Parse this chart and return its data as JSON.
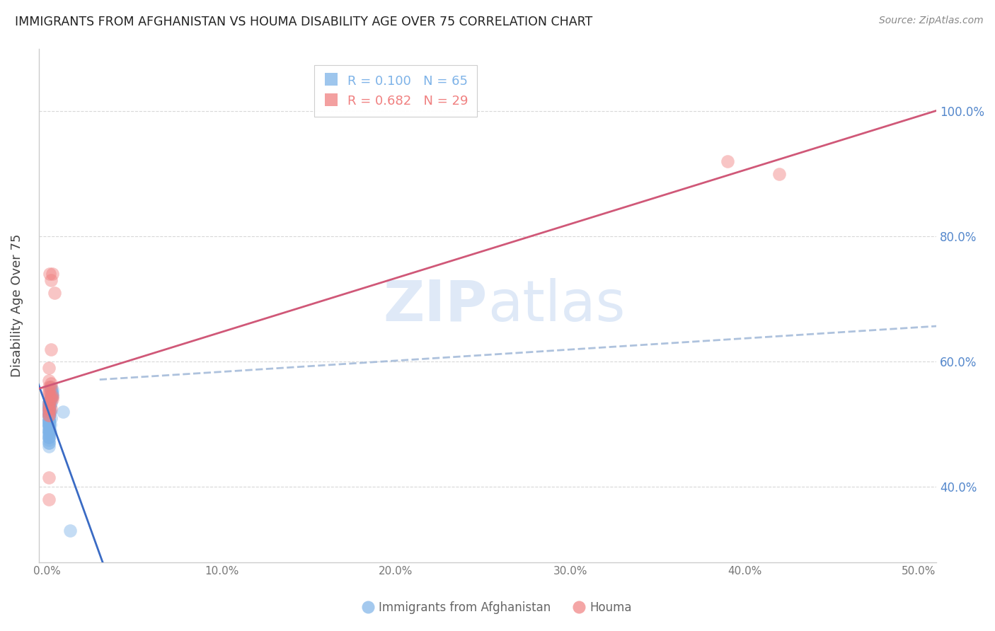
{
  "title": "IMMIGRANTS FROM AFGHANISTAN VS HOUMA DISABILITY AGE OVER 75 CORRELATION CHART",
  "source": "Source: ZipAtlas.com",
  "ylabel": "Disability Age Over 75",
  "afghanistan_color": "#7eb3e8",
  "houma_color": "#f08080",
  "regression_afghanistan_color": "#3a6bc4",
  "regression_houma_color": "#d05878",
  "dashed_line_color": "#a0b8d8",
  "background_color": "#ffffff",
  "grid_color": "#d8d8d8",
  "right_tick_color": "#5588cc",
  "scatter_size": 180,
  "scatter_alpha": 0.45,
  "afghanistan_x": [
    0.1,
    0.2,
    0.15,
    0.3,
    0.2,
    0.12,
    0.15,
    0.1,
    0.22,
    0.1,
    0.1,
    0.15,
    0.2,
    0.1,
    0.1,
    0.28,
    0.2,
    0.25,
    0.1,
    0.1,
    0.1,
    0.2,
    0.1,
    0.1,
    0.1,
    0.1,
    0.1,
    0.1,
    0.1,
    0.1,
    0.1,
    0.15,
    0.15,
    0.1,
    0.1,
    0.1,
    0.1,
    0.1,
    0.2,
    0.1,
    0.1,
    0.1,
    0.3,
    0.1,
    0.1,
    0.1,
    0.1,
    0.1,
    0.1,
    0.1,
    0.15,
    0.1,
    0.1,
    0.1,
    0.15,
    0.1,
    0.1,
    0.1,
    0.1,
    0.1,
    0.1,
    0.1,
    0.1,
    0.9,
    1.3
  ],
  "afghanistan_y": [
    0.535,
    0.545,
    0.54,
    0.555,
    0.54,
    0.53,
    0.56,
    0.535,
    0.555,
    0.53,
    0.528,
    0.53,
    0.545,
    0.535,
    0.53,
    0.55,
    0.555,
    0.55,
    0.53,
    0.528,
    0.525,
    0.535,
    0.528,
    0.525,
    0.52,
    0.525,
    0.52,
    0.518,
    0.518,
    0.515,
    0.515,
    0.52,
    0.52,
    0.515,
    0.515,
    0.51,
    0.51,
    0.505,
    0.51,
    0.505,
    0.505,
    0.5,
    0.545,
    0.5,
    0.505,
    0.5,
    0.5,
    0.495,
    0.495,
    0.49,
    0.5,
    0.49,
    0.49,
    0.485,
    0.49,
    0.485,
    0.48,
    0.48,
    0.475,
    0.47,
    0.48,
    0.47,
    0.465,
    0.52,
    0.33
  ],
  "houma_x": [
    0.2,
    0.3,
    0.12,
    0.4,
    0.2,
    0.1,
    0.1,
    0.2,
    0.3,
    0.1,
    0.1,
    0.2,
    0.2,
    0.1,
    0.1,
    0.1,
    0.3,
    0.2,
    0.1,
    0.1,
    0.1,
    0.2,
    0.1,
    0.1,
    0.1,
    0.1,
    0.1,
    39.0,
    42.0
  ],
  "houma_y": [
    0.73,
    0.74,
    0.74,
    0.71,
    0.56,
    0.57,
    0.59,
    0.62,
    0.54,
    0.55,
    0.56,
    0.565,
    0.54,
    0.53,
    0.555,
    0.545,
    0.545,
    0.545,
    0.535,
    0.415,
    0.38,
    0.525,
    0.525,
    0.525,
    0.52,
    0.515,
    0.515,
    0.92,
    0.9
  ],
  "xlim": [
    -0.5,
    51.0
  ],
  "ylim": [
    0.28,
    1.1
  ],
  "x_ticks": [
    0,
    10,
    20,
    30,
    40,
    50
  ],
  "x_tick_labels": [
    "0.0%",
    "10.0%",
    "20.0%",
    "30.0%",
    "40.0%",
    "50.0%"
  ],
  "y_ticks": [
    0.4,
    0.6,
    0.8,
    1.0
  ],
  "y_tick_labels": [
    "40.0%",
    "60.0%",
    "80.0%",
    "100.0%"
  ],
  "legend_afg_r": "0.100",
  "legend_afg_n": "65",
  "legend_houma_r": "0.682",
  "legend_houma_n": "29"
}
